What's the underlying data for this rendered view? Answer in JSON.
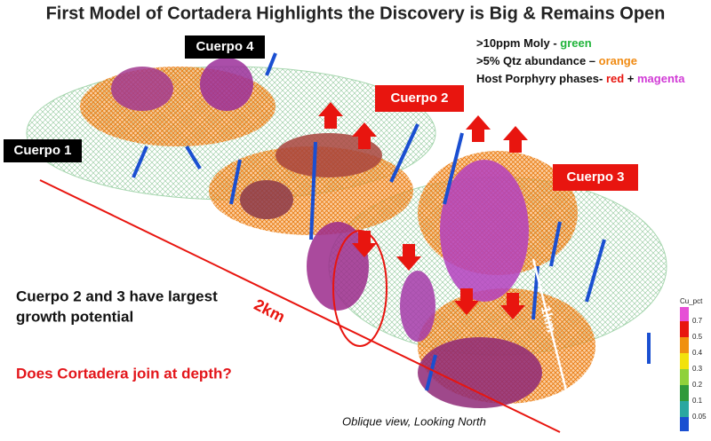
{
  "header": {
    "title": "First Model of Cortadera Highlights the Discovery is Big & Remains Open"
  },
  "legend": [
    {
      "text": ">10ppm Moly - ",
      "color_word": "green"
    },
    {
      "text": ">5% Qtz abundance – ",
      "color_word": "orange"
    },
    {
      "text": "Host Porphyry phases- ",
      "color_word": "red",
      "joiner": " + ",
      "color_word_2": "magenta"
    }
  ],
  "labels": {
    "cuerpo_1": "Cuerpo 1",
    "cuerpo_2": "Cuerpo 2",
    "cuerpo_3": "Cuerpo 3",
    "cuerpo_4": "Cuerpo 4"
  },
  "body": {
    "line_1": "Cuerpo 2 and 3 have largest",
    "line_2": "growth potential",
    "question": "Does Cortadera join at depth?"
  },
  "scale": {
    "long": "2km",
    "short": "1km"
  },
  "caption": "Oblique view, Looking North",
  "color_scale": {
    "title": "Cu_pct",
    "labels": [
      0.7,
      0.5,
      0.4,
      0.3,
      0.2,
      0.1,
      0.05
    ]
  }
}
